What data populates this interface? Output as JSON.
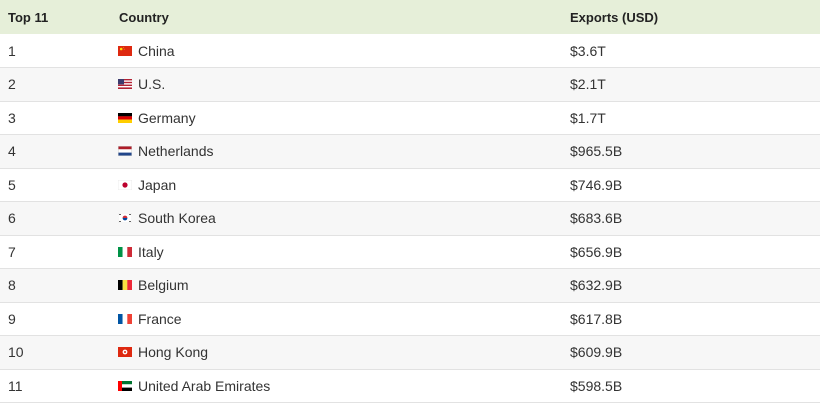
{
  "table": {
    "headers": {
      "rank": "Top 11",
      "country": "Country",
      "exports": "Exports (USD)"
    },
    "rows": [
      {
        "rank": "1",
        "country": "China",
        "exports": "$3.6T",
        "flag": "china-flag-icon"
      },
      {
        "rank": "2",
        "country": "U.S.",
        "exports": "$2.1T",
        "flag": "us-flag-icon"
      },
      {
        "rank": "3",
        "country": "Germany",
        "exports": "$1.7T",
        "flag": "germany-flag-icon"
      },
      {
        "rank": "4",
        "country": "Netherlands",
        "exports": "$965.5B",
        "flag": "netherlands-flag-icon"
      },
      {
        "rank": "5",
        "country": "Japan",
        "exports": "$746.9B",
        "flag": "japan-flag-icon"
      },
      {
        "rank": "6",
        "country": "South Korea",
        "exports": "$683.6B",
        "flag": "south-korea-flag-icon"
      },
      {
        "rank": "7",
        "country": "Italy",
        "exports": "$656.9B",
        "flag": "italy-flag-icon"
      },
      {
        "rank": "8",
        "country": "Belgium",
        "exports": "$632.9B",
        "flag": "belgium-flag-icon"
      },
      {
        "rank": "9",
        "country": "France",
        "exports": "$617.8B",
        "flag": "france-flag-icon"
      },
      {
        "rank": "10",
        "country": "Hong Kong",
        "exports": "$609.9B",
        "flag": "hong-kong-flag-icon"
      },
      {
        "rank": "11",
        "country": "United Arab Emirates",
        "exports": "$598.5B",
        "flag": "uae-flag-icon"
      }
    ]
  },
  "colors": {
    "header_bg": "#e6efd9",
    "row_alt_bg": "#f7f7f7",
    "border": "#e2e2e2"
  }
}
